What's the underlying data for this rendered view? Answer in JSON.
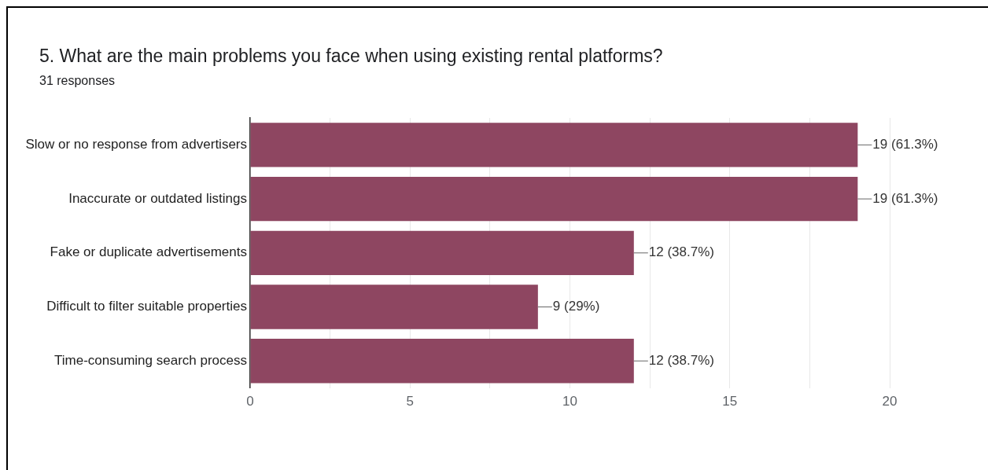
{
  "chart_data": {
    "type": "bar",
    "orientation": "horizontal",
    "title": "5. What are the main problems you face when using existing rental platforms?",
    "subtitle": "31 responses",
    "categories": [
      "Slow or no response from advertisers",
      "Inaccurate or outdated listings",
      "Fake or duplicate advertisements",
      "Difficult to filter suitable properties",
      "Time-consuming search process"
    ],
    "values": [
      19,
      19,
      12,
      9,
      12
    ],
    "value_labels": [
      "19 (61.3%)",
      "19 (61.3%)",
      "12 (38.7%)",
      "9 (29%)",
      "12 (38.7%)"
    ],
    "color": "#8e4661",
    "xlim": [
      0,
      20
    ],
    "xticks": [
      0,
      {
        "value": 2.5,
        "label": null
      },
      5,
      {
        "value": 7.5,
        "label": null
      },
      10,
      {
        "value": 12.5,
        "label": null
      },
      15,
      {
        "value": 17.5,
        "label": null
      },
      20
    ],
    "grid": "x",
    "legend": false
  }
}
